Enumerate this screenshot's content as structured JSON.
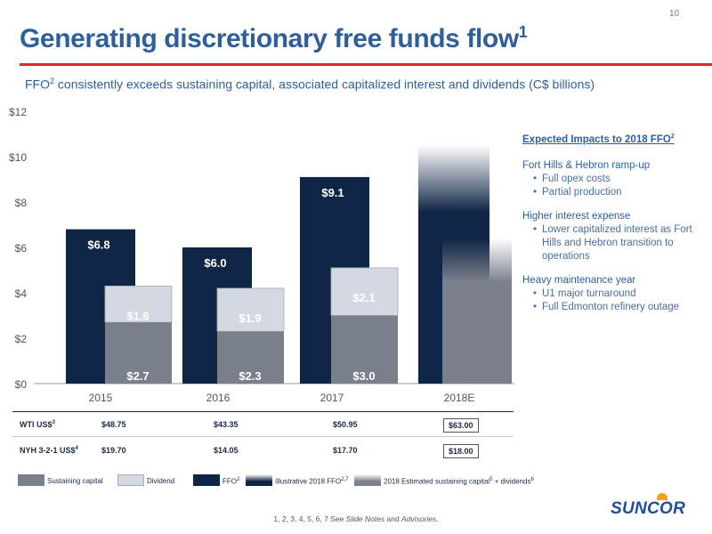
{
  "slide": {
    "page_number": "10",
    "title": "Generating discretionary free funds flow",
    "title_sup": "1",
    "subtitle_pre": "FFO",
    "subtitle_sup": "2",
    "subtitle_post": " consistently exceeds sustaining capital, associated capitalized interest and dividends (C$ billions)"
  },
  "colors": {
    "ffo": "#0f2545",
    "sustaining": "#7a7f8c",
    "dividend": "#d3d8e1",
    "dividend_border": "#a5acb8",
    "estimate": "#7b808c",
    "text_blue": "#2f5f9a",
    "rule_red": "#e0262e"
  },
  "chart_data": {
    "type": "bar",
    "categories": [
      "2015",
      "2016",
      "2017",
      "2018E"
    ],
    "ylim": [
      0,
      12
    ],
    "yticks": [
      0,
      2,
      4,
      6,
      8,
      10,
      12
    ],
    "ytick_labels": [
      "$0",
      "$2",
      "$4",
      "$6",
      "$8",
      "$10",
      "$12"
    ],
    "series": [
      {
        "name": "FFO",
        "values": [
          6.8,
          6.0,
          9.1,
          null
        ],
        "labels": [
          "$6.8",
          "$6.0",
          "$9.1",
          ""
        ]
      },
      {
        "name": "Sustaining capital",
        "values": [
          2.7,
          2.3,
          3.0,
          null
        ],
        "labels": [
          "$2.7",
          "$2.3",
          "$3.0",
          ""
        ]
      },
      {
        "name": "Dividend",
        "values": [
          1.6,
          1.9,
          2.1,
          null
        ],
        "labels": [
          "$1.6",
          "$1.9",
          "$2.1",
          ""
        ]
      },
      {
        "name": "Illustrative 2018 FFO",
        "values": [
          null,
          null,
          null,
          10.5
        ]
      },
      {
        "name": "2018 Estimated sustaining capital + dividends",
        "values": [
          null,
          null,
          null,
          6.4
        ]
      }
    ],
    "grid": false
  },
  "table": {
    "rows": [
      {
        "label": "WTI US$",
        "sup": "3",
        "values": [
          "$48.75",
          "$43.35",
          "$50.95",
          "$63.00"
        ]
      },
      {
        "label": "NYH 3-2-1 US$",
        "sup": "4",
        "values": [
          "$19.70",
          "$14.05",
          "$17.70",
          "$18.00"
        ]
      }
    ]
  },
  "legend": [
    {
      "label": "Sustaining capital",
      "sup": "",
      "icon": "sustaining-capital-swatch"
    },
    {
      "label": "Dividend",
      "sup": "",
      "icon": "dividend-swatch"
    },
    {
      "label": "FFO",
      "sup": "2",
      "icon": "ffo-swatch"
    },
    {
      "label": "Illustrative 2018 FFO",
      "sup": "2,7",
      "icon": "illustrative-ffo-swatch"
    },
    {
      "label": "2018 Estimated sustaining capital",
      "sup": "5",
      "suffix": " + dividends",
      "sup2": "6",
      "icon": "estimated-capital-swatch"
    }
  ],
  "impacts": {
    "heading": "Expected Impacts to 2018 FFO",
    "heading_sup": "2",
    "groups": [
      {
        "title": "Fort Hills & Hebron ramp-up",
        "bullets": [
          "Full opex costs",
          "Partial production"
        ]
      },
      {
        "title": "Higher interest expense",
        "bullets": [
          "Lower capitalized interest as Fort Hills and Hebron transition to operations"
        ]
      },
      {
        "title": "Heavy maintenance year",
        "bullets": [
          "U1 major turnaround",
          "Full Edmonton refinery outage"
        ]
      }
    ]
  },
  "footnote": {
    "pre": "1, 2, 3, 4, 5, 6, 7 See ",
    "slide_notes": "Slide Notes",
    "and": " and ",
    "advisories": "Advisories",
    "end": "."
  },
  "logo": {
    "text": "SUNCOR",
    "icon": "suncor-sun-icon"
  }
}
